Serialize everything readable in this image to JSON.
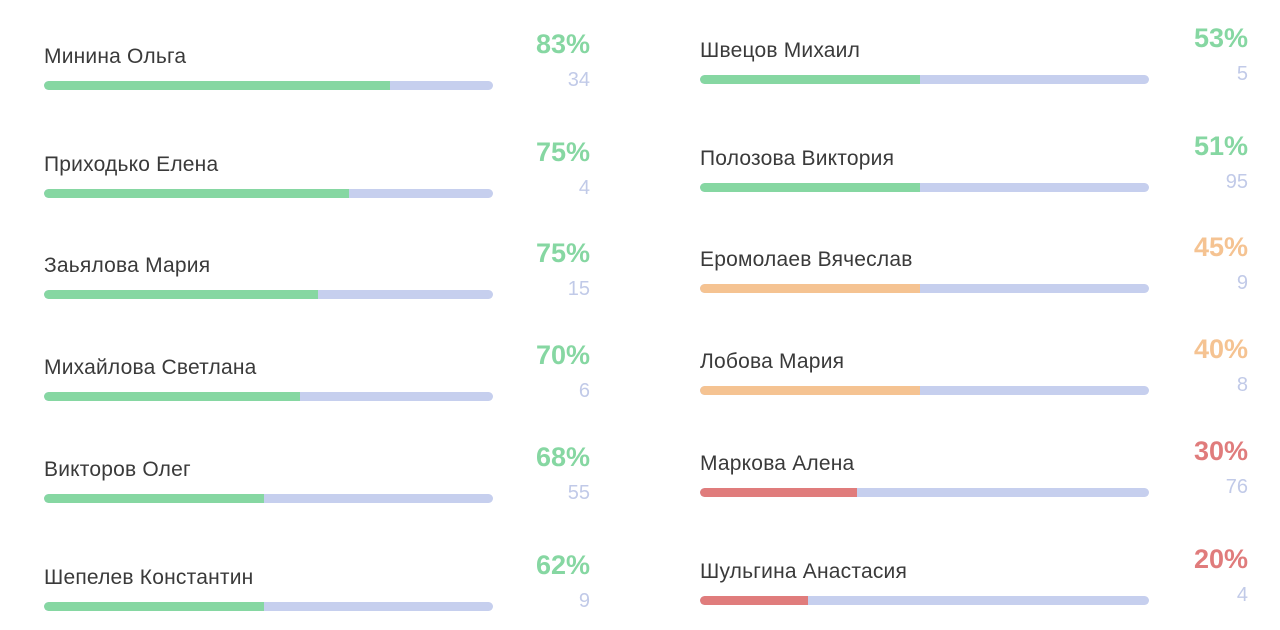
{
  "colors": {
    "green": "#86d7a2",
    "orange": "#f5c392",
    "red": "#e07c7c",
    "track": "#c6cfee",
    "count_text": "#c1cae8",
    "name_text": "#3a3a3a"
  },
  "left_column": [
    {
      "name": "Минина Ольга",
      "percent": "83%",
      "count": "34",
      "fill": 0.77,
      "color": "green"
    },
    {
      "name": "Приходько Елена",
      "percent": "75%",
      "count": "4",
      "fill": 0.68,
      "color": "green"
    },
    {
      "name": "Заьялова Мария",
      "percent": "75%",
      "count": "15",
      "fill": 0.61,
      "color": "green"
    },
    {
      "name": "Михайлова Светлана",
      "percent": "70%",
      "count": "6",
      "fill": 0.57,
      "color": "green"
    },
    {
      "name": "Викторов Олег",
      "percent": "68%",
      "count": "55",
      "fill": 0.49,
      "color": "green"
    },
    {
      "name": "Шепелев Константин",
      "percent": "62%",
      "count": "9",
      "fill": 0.49,
      "color": "green"
    }
  ],
  "right_column": [
    {
      "name": "Швецов Михаил",
      "percent": "53%",
      "count": "5",
      "fill": 0.49,
      "color": "green"
    },
    {
      "name": "Полозова Виктория",
      "percent": "51%",
      "count": "95",
      "fill": 0.49,
      "color": "green"
    },
    {
      "name": "Еромолаев Вячеслав",
      "percent": "45%",
      "count": "9",
      "fill": 0.49,
      "color": "orange"
    },
    {
      "name": "Лобова Мария",
      "percent": "40%",
      "count": "8",
      "fill": 0.49,
      "color": "orange"
    },
    {
      "name": "Маркова Алена",
      "percent": "30%",
      "count": "76",
      "fill": 0.35,
      "color": "red"
    },
    {
      "name": "Шульгина Анастасия",
      "percent": "20%",
      "count": "4",
      "fill": 0.24,
      "color": "red"
    }
  ]
}
